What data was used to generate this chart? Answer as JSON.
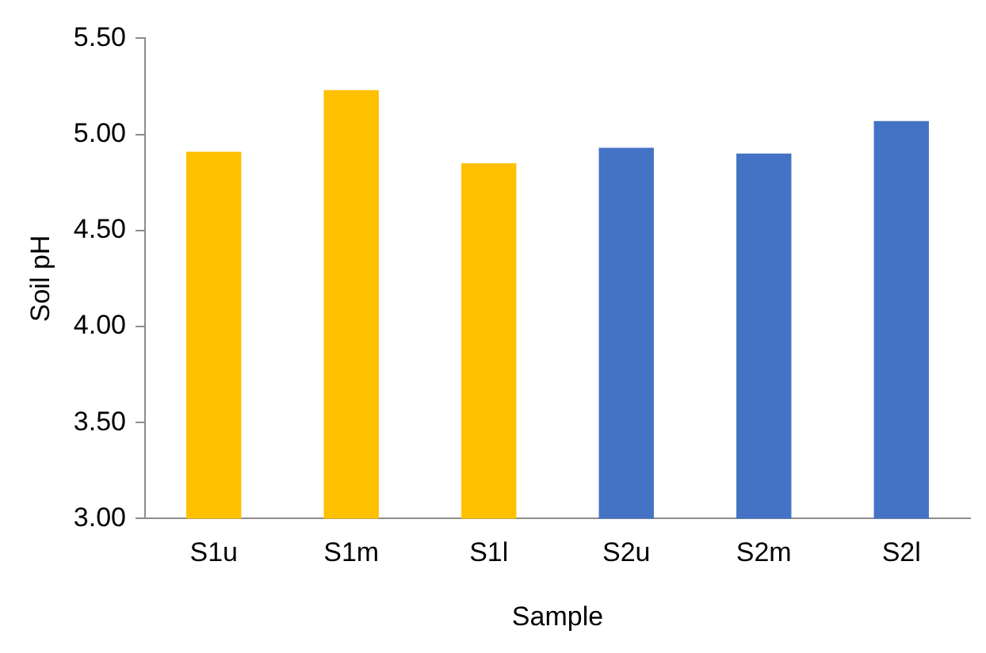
{
  "chart_data": {
    "type": "bar",
    "xlabel": "Sample",
    "ylabel": "Soil pH",
    "categories": [
      "S1u",
      "S1m",
      "S1l",
      "S2u",
      "S2m",
      "S2l"
    ],
    "values": [
      4.91,
      5.23,
      4.85,
      4.93,
      4.9,
      5.07
    ],
    "colors": [
      "#ffc000",
      "#ffc000",
      "#ffc000",
      "#4472c4",
      "#4472c4",
      "#4472c4"
    ],
    "ylim": [
      3,
      5.5
    ],
    "yticks": [
      {
        "value": 3,
        "label": "3.00"
      },
      {
        "value": 3.5,
        "label": "3.50"
      },
      {
        "value": 4,
        "label": "4.00"
      },
      {
        "value": 4.5,
        "label": "4.50"
      },
      {
        "value": 5,
        "label": "5.00"
      },
      {
        "value": 5.5,
        "label": "5.50"
      }
    ],
    "grid": false,
    "legend": false
  }
}
